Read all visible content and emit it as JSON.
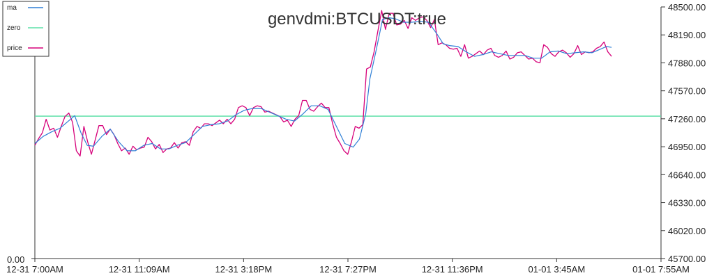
{
  "chart_data": {
    "type": "line",
    "title": "genvdmi:BTCUSDT:true",
    "legend": {
      "placement": "top-left",
      "entries": [
        {
          "name": "ma",
          "color": "#2f7fd6"
        },
        {
          "name": "zero",
          "color": "#5ee0a8"
        },
        {
          "name": "price",
          "color": "#d6007a"
        }
      ]
    },
    "x_tick_labels": [
      "12-31 7:00AM",
      "12-31 11:09AM",
      "12-31 3:18PM",
      "12-31 7:27PM",
      "12-31 11:36PM",
      "01-01 3:45AM",
      "01-01 7:55AM"
    ],
    "x_range": [
      0,
      1495
    ],
    "left_axis": {
      "tick_labels": [
        "0.00"
      ]
    },
    "right_axis": {
      "range": [
        45700,
        48500
      ],
      "tick_labels": [
        "48500.00",
        "48190.00",
        "47880.00",
        "47570.00",
        "47260.00",
        "46950.00",
        "46640.00",
        "46330.00",
        "46020.00",
        "45700.00"
      ]
    },
    "zero_line_value": 47285,
    "series": [
      {
        "name": "price",
        "color": "#d6007a",
        "points": [
          [
            0,
            46960
          ],
          [
            9,
            47035
          ],
          [
            18,
            47100
          ],
          [
            27,
            47250
          ],
          [
            36,
            47130
          ],
          [
            45,
            47150
          ],
          [
            54,
            47050
          ],
          [
            63,
            47170
          ],
          [
            72,
            47280
          ],
          [
            81,
            47320
          ],
          [
            90,
            47215
          ],
          [
            99,
            46900
          ],
          [
            108,
            46840
          ],
          [
            117,
            47170
          ],
          [
            126,
            47000
          ],
          [
            135,
            46860
          ],
          [
            144,
            47020
          ],
          [
            153,
            47180
          ],
          [
            162,
            47180
          ],
          [
            171,
            47080
          ],
          [
            180,
            47140
          ],
          [
            189,
            47080
          ],
          [
            198,
            46980
          ],
          [
            207,
            46900
          ],
          [
            216,
            46930
          ],
          [
            225,
            46860
          ],
          [
            234,
            46950
          ],
          [
            243,
            46910
          ],
          [
            252,
            46930
          ],
          [
            261,
            46940
          ],
          [
            270,
            47050
          ],
          [
            279,
            47000
          ],
          [
            288,
            46920
          ],
          [
            297,
            46970
          ],
          [
            306,
            46880
          ],
          [
            315,
            46920
          ],
          [
            324,
            46930
          ],
          [
            333,
            46990
          ],
          [
            342,
            46930
          ],
          [
            351,
            46990
          ],
          [
            360,
            47000
          ],
          [
            369,
            46960
          ],
          [
            378,
            47110
          ],
          [
            387,
            47170
          ],
          [
            396,
            47150
          ],
          [
            405,
            47200
          ],
          [
            414,
            47200
          ],
          [
            423,
            47180
          ],
          [
            432,
            47210
          ],
          [
            441,
            47240
          ],
          [
            450,
            47200
          ],
          [
            459,
            47250
          ],
          [
            468,
            47200
          ],
          [
            477,
            47250
          ],
          [
            486,
            47380
          ],
          [
            495,
            47400
          ],
          [
            504,
            47380
          ],
          [
            513,
            47290
          ],
          [
            522,
            47380
          ],
          [
            531,
            47400
          ],
          [
            540,
            47390
          ],
          [
            549,
            47330
          ],
          [
            558,
            47340
          ],
          [
            567,
            47320
          ],
          [
            576,
            47300
          ],
          [
            585,
            47280
          ],
          [
            594,
            47220
          ],
          [
            603,
            47240
          ],
          [
            612,
            47170
          ],
          [
            621,
            47250
          ],
          [
            630,
            47290
          ],
          [
            639,
            47460
          ],
          [
            648,
            47460
          ],
          [
            657,
            47360
          ],
          [
            666,
            47340
          ],
          [
            675,
            47390
          ],
          [
            684,
            47430
          ],
          [
            693,
            47380
          ],
          [
            702,
            47380
          ],
          [
            711,
            47200
          ],
          [
            720,
            47050
          ],
          [
            729,
            46980
          ],
          [
            738,
            46900
          ],
          [
            747,
            46860
          ],
          [
            756,
            47000
          ],
          [
            765,
            47170
          ],
          [
            774,
            47150
          ],
          [
            783,
            47190
          ],
          [
            792,
            47810
          ],
          [
            801,
            47830
          ],
          [
            810,
            48000
          ],
          [
            819,
            48230
          ],
          [
            828,
            48460
          ],
          [
            837,
            48250
          ],
          [
            846,
            48430
          ],
          [
            855,
            48430
          ],
          [
            864,
            48300
          ],
          [
            873,
            48310
          ],
          [
            882,
            48350
          ],
          [
            891,
            48260
          ],
          [
            900,
            48380
          ],
          [
            909,
            48350
          ],
          [
            918,
            48380
          ],
          [
            927,
            48390
          ],
          [
            936,
            48350
          ],
          [
            945,
            48270
          ],
          [
            954,
            48360
          ],
          [
            963,
            48080
          ],
          [
            972,
            48100
          ],
          [
            981,
            48080
          ],
          [
            990,
            48040
          ],
          [
            999,
            48030
          ],
          [
            1008,
            48040
          ],
          [
            1017,
            47950
          ],
          [
            1026,
            48080
          ],
          [
            1035,
            47930
          ],
          [
            1044,
            47950
          ],
          [
            1053,
            47980
          ],
          [
            1062,
            48010
          ],
          [
            1071,
            47970
          ],
          [
            1080,
            48020
          ],
          [
            1089,
            48040
          ],
          [
            1098,
            47960
          ],
          [
            1107,
            47940
          ],
          [
            1116,
            47960
          ],
          [
            1125,
            48010
          ],
          [
            1134,
            47920
          ],
          [
            1143,
            47940
          ],
          [
            1152,
            47990
          ],
          [
            1161,
            48000
          ],
          [
            1170,
            47960
          ],
          [
            1179,
            47920
          ],
          [
            1188,
            47930
          ],
          [
            1197,
            47890
          ],
          [
            1206,
            47880
          ],
          [
            1215,
            48080
          ],
          [
            1224,
            48050
          ],
          [
            1233,
            47980
          ],
          [
            1242,
            47950
          ],
          [
            1251,
            48000
          ],
          [
            1260,
            48020
          ],
          [
            1269,
            47990
          ],
          [
            1278,
            47940
          ],
          [
            1287,
            47980
          ],
          [
            1296,
            48070
          ],
          [
            1305,
            47970
          ],
          [
            1314,
            48000
          ],
          [
            1323,
            47990
          ],
          [
            1332,
            48000
          ],
          [
            1341,
            48040
          ],
          [
            1350,
            48060
          ],
          [
            1359,
            48110
          ],
          [
            1368,
            48000
          ],
          [
            1377,
            47950
          ]
        ]
      },
      {
        "name": "ma",
        "color": "#2f7fd6",
        "points": [
          [
            0,
            46980
          ],
          [
            20,
            47060
          ],
          [
            40,
            47110
          ],
          [
            60,
            47150
          ],
          [
            80,
            47230
          ],
          [
            95,
            47290
          ],
          [
            110,
            47100
          ],
          [
            125,
            46960
          ],
          [
            140,
            46950
          ],
          [
            160,
            47060
          ],
          [
            180,
            47140
          ],
          [
            200,
            47000
          ],
          [
            220,
            46900
          ],
          [
            240,
            46900
          ],
          [
            260,
            46960
          ],
          [
            280,
            46980
          ],
          [
            300,
            46920
          ],
          [
            320,
            46920
          ],
          [
            340,
            46960
          ],
          [
            360,
            46990
          ],
          [
            380,
            47080
          ],
          [
            400,
            47170
          ],
          [
            420,
            47190
          ],
          [
            440,
            47200
          ],
          [
            460,
            47230
          ],
          [
            480,
            47300
          ],
          [
            500,
            47350
          ],
          [
            520,
            47370
          ],
          [
            540,
            47370
          ],
          [
            560,
            47330
          ],
          [
            580,
            47290
          ],
          [
            600,
            47250
          ],
          [
            620,
            47230
          ],
          [
            640,
            47310
          ],
          [
            660,
            47400
          ],
          [
            680,
            47400
          ],
          [
            700,
            47360
          ],
          [
            720,
            47170
          ],
          [
            740,
            46980
          ],
          [
            760,
            46940
          ],
          [
            775,
            47030
          ],
          [
            790,
            47310
          ],
          [
            800,
            47700
          ],
          [
            815,
            48020
          ],
          [
            830,
            48360
          ],
          [
            845,
            48380
          ],
          [
            860,
            48370
          ],
          [
            880,
            48330
          ],
          [
            900,
            48330
          ],
          [
            920,
            48340
          ],
          [
            940,
            48330
          ],
          [
            960,
            48200
          ],
          [
            975,
            48090
          ],
          [
            990,
            48070
          ],
          [
            1010,
            48060
          ],
          [
            1030,
            48000
          ],
          [
            1050,
            47950
          ],
          [
            1070,
            47970
          ],
          [
            1090,
            48000
          ],
          [
            1110,
            47980
          ],
          [
            1130,
            47960
          ],
          [
            1150,
            47960
          ],
          [
            1170,
            47960
          ],
          [
            1190,
            47930
          ],
          [
            1210,
            47930
          ],
          [
            1230,
            48000
          ],
          [
            1250,
            48010
          ],
          [
            1270,
            47980
          ],
          [
            1290,
            47990
          ],
          [
            1310,
            48000
          ],
          [
            1330,
            47990
          ],
          [
            1350,
            48030
          ],
          [
            1365,
            48060
          ],
          [
            1377,
            48050
          ]
        ]
      }
    ]
  }
}
